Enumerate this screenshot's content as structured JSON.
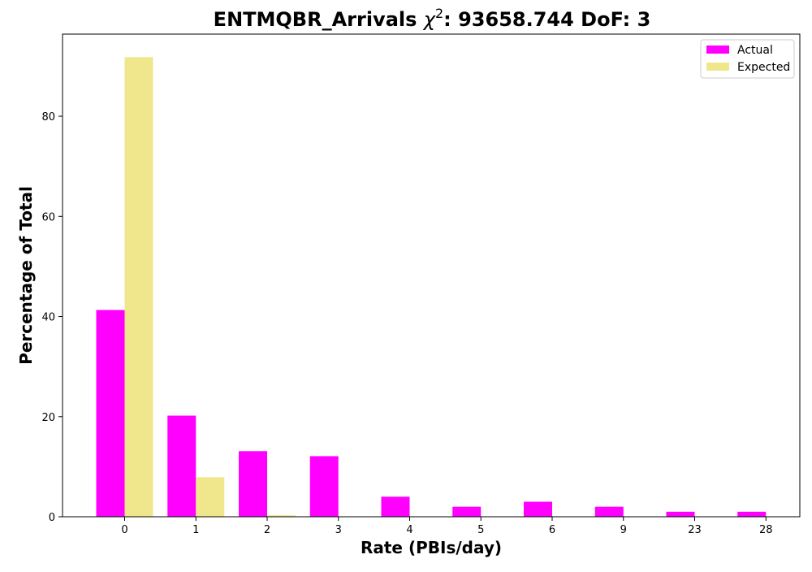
{
  "chart_data": {
    "type": "bar",
    "title": "ENTMQBR_Arrivals χ²: 93658.744 DoF: 3",
    "title_parts": {
      "prefix": "ENTMQBR_Arrivals ",
      "chi": "χ",
      "sup": "2",
      "suffix": ": 93658.744 DoF: 3"
    },
    "xlabel": "Rate (PBIs/day)",
    "ylabel": "Percentage of Total",
    "categories": [
      "0",
      "1",
      "2",
      "3",
      "4",
      "5",
      "6",
      "9",
      "23",
      "28"
    ],
    "series": [
      {
        "name": "Actual",
        "color": "#ff00ff",
        "values": [
          41.3,
          20.2,
          13.1,
          12.1,
          4.0,
          2.0,
          3.0,
          2.0,
          1.0,
          1.0
        ]
      },
      {
        "name": "Expected",
        "color": "#f0e68c",
        "values": [
          91.8,
          7.9,
          0.3,
          0.0,
          0.0,
          0.0,
          0.0,
          0.0,
          0.0,
          0.0
        ]
      }
    ],
    "ylim": [
      0,
      96.4
    ],
    "yticks": [
      0,
      20,
      40,
      60,
      80
    ],
    "grid": false,
    "legend_position": "top-right"
  }
}
